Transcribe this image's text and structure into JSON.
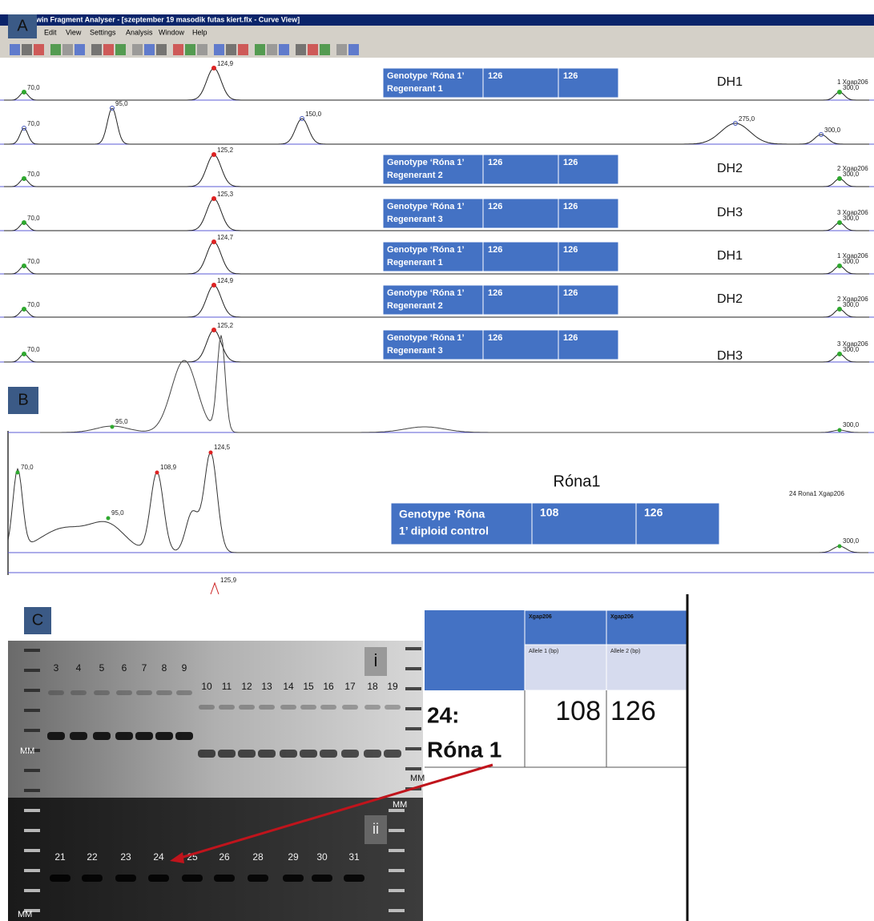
{
  "panel_a": {
    "label": "A",
    "window_title": "win Fragment Analyser - [szeptember 19 masodik futas kiert.flx - Curve View]",
    "menu": [
      "Edit",
      "View",
      "Settings",
      "Analysis",
      "Window",
      "Help"
    ],
    "rows": [
      {
        "peaks": [
          "70,0",
          "124,9",
          "300,0"
        ],
        "genotype": [
          "Genotype ‘Róna 1’",
          "Regenerant 1"
        ],
        "allele_1": "126",
        "allele_2": "126",
        "dh": "DH1",
        "marker": "1 Xgap206"
      },
      {
        "peaks": [
          "70,0",
          "95,0",
          "150,0",
          "275,0",
          "300,0"
        ]
      },
      {
        "peaks": [
          "70,0",
          "125,2",
          "300,0"
        ],
        "genotype": [
          "Genotype ‘Róna 1’",
          "Regenerant 2"
        ],
        "allele_1": "126",
        "allele_2": "126",
        "dh": "DH2",
        "marker": "2 Xgap206"
      },
      {
        "peaks": [
          "70,0",
          "125,3",
          "300,0"
        ],
        "genotype": [
          "Genotype ‘Róna 1’",
          "Regenerant 3"
        ],
        "allele_1": "126",
        "allele_2": "126",
        "dh": "DH3",
        "marker": "3 Xgap206"
      },
      {
        "peaks": [
          "70,0",
          "124,7",
          "300,0"
        ],
        "genotype": [
          "Genotype ‘Róna 1’",
          "Regenerant 1"
        ],
        "allele_1": "126",
        "allele_2": "126",
        "dh": "DH1",
        "marker": "1 Xgap206"
      },
      {
        "peaks": [
          "70,0",
          "124,9",
          "300,0"
        ],
        "genotype": [
          "Genotype ‘Róna 1’",
          "Regenerant 2"
        ],
        "allele_1": "126",
        "allele_2": "126",
        "dh": "DH2",
        "marker": "2 Xgap206"
      },
      {
        "peaks": [
          "70,0",
          "125,2",
          "300,0"
        ],
        "genotype": [
          "Genotype ‘Róna 1’",
          "Regenerant 3"
        ],
        "allele_1": "126",
        "allele_2": "126",
        "dh": "DH3",
        "marker": "3 Xgap206"
      }
    ]
  },
  "panel_b": {
    "label": "B",
    "top_peaks": [
      "95,0",
      "300,0"
    ],
    "peaks": [
      "70,0",
      "95,0",
      "108,9",
      "124,5",
      "300,0"
    ],
    "below_peak": "125,9",
    "title": "Róna1",
    "genotype": [
      "Genotype ‘Róna",
      "1’ diploid control"
    ],
    "allele_1": "108",
    "allele_2": "126",
    "marker": "24 Rona1 Xgap206"
  },
  "panel_c": {
    "label": "C",
    "gel_i": "i",
    "gel_ii": "ii",
    "lanes_i": [
      "3",
      "4",
      "5",
      "6",
      "7",
      "8",
      "9",
      "10",
      "11",
      "12",
      "13",
      "14",
      "15",
      "16",
      "17",
      "18",
      "19"
    ],
    "lanes_ii": [
      "21",
      "22",
      "23",
      "24",
      "25",
      "26",
      "28",
      "29",
      "30",
      "31"
    ],
    "mm": [
      "MM",
      "MM",
      "MM",
      "MM"
    ],
    "table": {
      "marker_1": "Xgap206",
      "marker_2": "Xgap206",
      "allele_1_header": "Allele 1 (bp)",
      "allele_2_header": "Allele 2 (bp)",
      "sample": [
        "24:",
        "Róna 1"
      ],
      "allele_1": "108",
      "allele_2": "126"
    }
  }
}
